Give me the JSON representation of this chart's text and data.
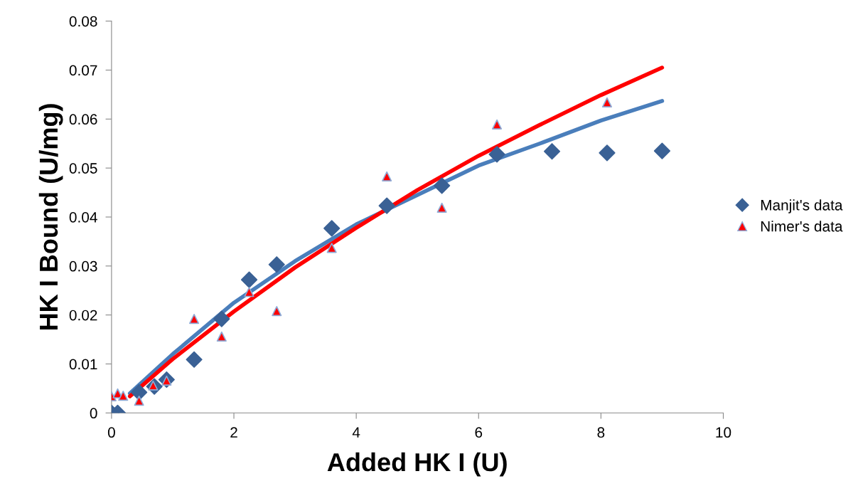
{
  "chart_data": {
    "type": "scatter",
    "xlabel": "Added HK I (U)",
    "ylabel": "HK I Bound (U/mg)",
    "xlim": [
      0,
      10
    ],
    "xticks": [
      0,
      2,
      4,
      6,
      8,
      10
    ],
    "ylim": [
      0,
      0.08
    ],
    "yticks": [
      0,
      0.01,
      0.02,
      0.03,
      0.04,
      0.05,
      0.06,
      0.07,
      0.08
    ],
    "grid": false,
    "legend": "right",
    "series": [
      {
        "name": "Manjit's data",
        "marker": "diamond",
        "color": "#3a6195",
        "x": [
          0,
          0.1,
          0.45,
          0.7,
          0.9,
          1.35,
          1.8,
          2.25,
          2.7,
          3.6,
          4.5,
          5.4,
          6.3,
          7.2,
          8.1,
          9.0
        ],
        "values": [
          0,
          0,
          0.0042,
          0.0054,
          0.0068,
          0.0109,
          0.0192,
          0.0272,
          0.0303,
          0.0377,
          0.0423,
          0.0464,
          0.0528,
          0.0534,
          0.0531,
          0.0535
        ]
      },
      {
        "name": "Nimer's data",
        "marker": "triangle",
        "color": "#ff0000",
        "x": [
          0,
          0.1,
          0.19,
          0.45,
          0.68,
          0.9,
          1.35,
          1.8,
          2.25,
          2.7,
          3.6,
          4.5,
          5.4,
          6.3,
          8.1
        ],
        "values": [
          0.0034,
          0.004,
          0.0035,
          0.0025,
          0.0056,
          0.0066,
          0.0192,
          0.0156,
          0.0247,
          0.0208,
          0.0337,
          0.0483,
          0.0419,
          0.0589,
          0.0634
        ]
      },
      {
        "type": "line",
        "marker": "none",
        "line_style": "solid",
        "color": "#4a7ebb",
        "x": [
          0.3,
          1,
          2,
          3,
          4,
          5,
          6,
          7,
          8,
          9
        ],
        "values": [
          0.004,
          0.012,
          0.0225,
          0.031,
          0.0385,
          0.0445,
          0.0505,
          0.055,
          0.0597,
          0.0637
        ]
      },
      {
        "type": "line",
        "marker": "none",
        "line_style": "solid",
        "color": "#ff0000",
        "x": [
          0.3,
          1,
          2,
          3,
          4,
          5,
          6,
          7,
          8,
          9
        ],
        "values": [
          0.0034,
          0.011,
          0.0207,
          0.0297,
          0.0378,
          0.0455,
          0.0525,
          0.0588,
          0.0649,
          0.0705
        ]
      }
    ]
  }
}
